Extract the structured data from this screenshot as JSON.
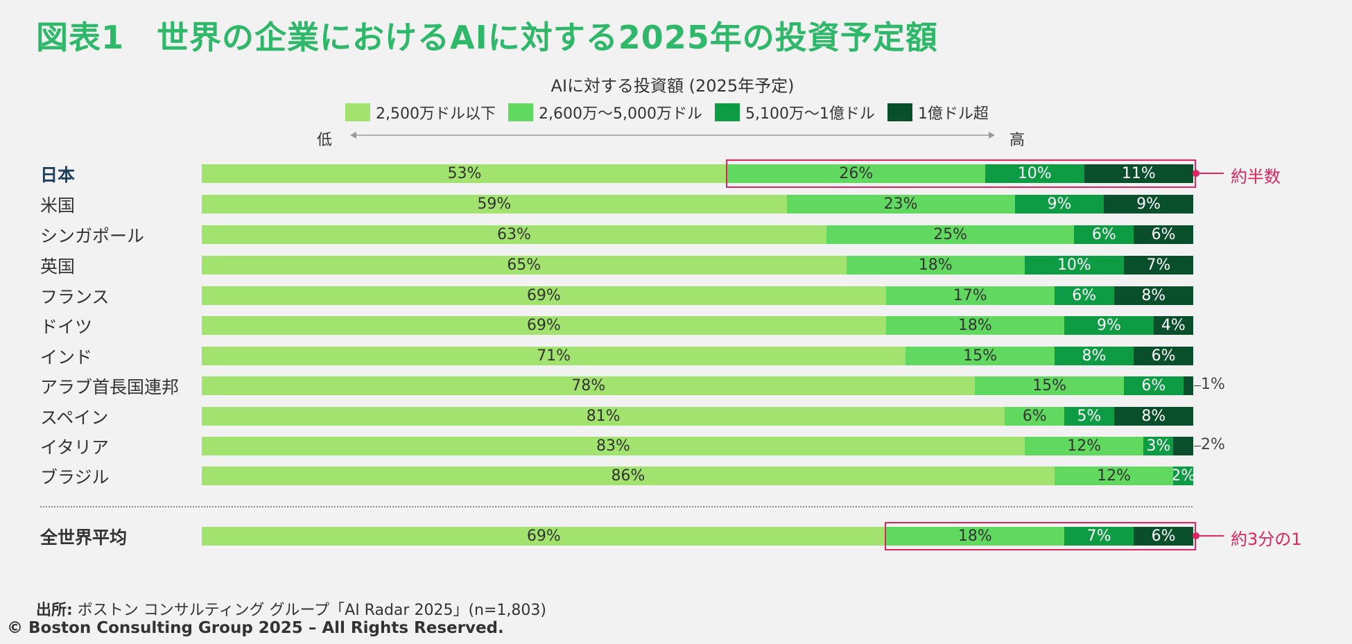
{
  "title": "図表1　世界の企業におけるAIに対する2025年の投資予定額",
  "chart_data": {
    "type": "bar",
    "orientation": "horizontal",
    "stacked": true,
    "normalized_percent": true,
    "title": "AIに対する投資額 (2025年予定)",
    "axis_low_label": "低",
    "axis_high_label": "高",
    "legend_placement": "top",
    "categories": [
      "日本",
      "米国",
      "シンガポール",
      "英国",
      "フランス",
      "ドイツ",
      "インド",
      "アラブ首長国連邦",
      "スペイン",
      "イタリア",
      "ブラジル",
      "全世界平均"
    ],
    "series": [
      {
        "name": "2,500万ドル以下",
        "color": "#a2e26e",
        "values": [
          53,
          59,
          63,
          65,
          69,
          69,
          71,
          78,
          81,
          83,
          86,
          69
        ]
      },
      {
        "name": "2,600万～5,000万ドル",
        "color": "#61d961",
        "values": [
          26,
          23,
          25,
          18,
          17,
          18,
          15,
          15,
          6,
          12,
          12,
          18
        ]
      },
      {
        "name": "5,100万～1億ドル",
        "color": "#0d9b44",
        "values": [
          10,
          9,
          6,
          10,
          6,
          9,
          8,
          6,
          5,
          3,
          2,
          7
        ]
      },
      {
        "name": "1億ドル超",
        "color": "#0a4f2c",
        "values": [
          11,
          9,
          6,
          7,
          8,
          4,
          6,
          1,
          8,
          2,
          0,
          6
        ]
      }
    ],
    "value_labels": [
      [
        "53%",
        "26%",
        "10%",
        "11%"
      ],
      [
        "59%",
        "23%",
        "9%",
        "9%"
      ],
      [
        "63%",
        "25%",
        "6%",
        "6%"
      ],
      [
        "65%",
        "18%",
        "10%",
        "7%"
      ],
      [
        "69%",
        "17%",
        "6%",
        "8%"
      ],
      [
        "69%",
        "18%",
        "9%",
        "4%"
      ],
      [
        "71%",
        "15%",
        "8%",
        "6%"
      ],
      [
        "78%",
        "15%",
        "6%",
        "1%"
      ],
      [
        "81%",
        "6%",
        "5%",
        "8%"
      ],
      [
        "83%",
        "12%",
        "3%",
        "2%"
      ],
      [
        "86%",
        "12%",
        "2%",
        ""
      ],
      [
        "69%",
        "18%",
        "7%",
        "6%"
      ]
    ],
    "annotations": [
      {
        "category": "日本",
        "text": "約半数"
      },
      {
        "category": "全世界平均",
        "text": "約3分の1"
      }
    ]
  },
  "source_label": "出所:",
  "source_text": " ボストン コンサルティング グループ「AI Radar 2025」(n=1,803)",
  "copyright": "© Boston Consulting Group 2025 – All Rights Reserved."
}
